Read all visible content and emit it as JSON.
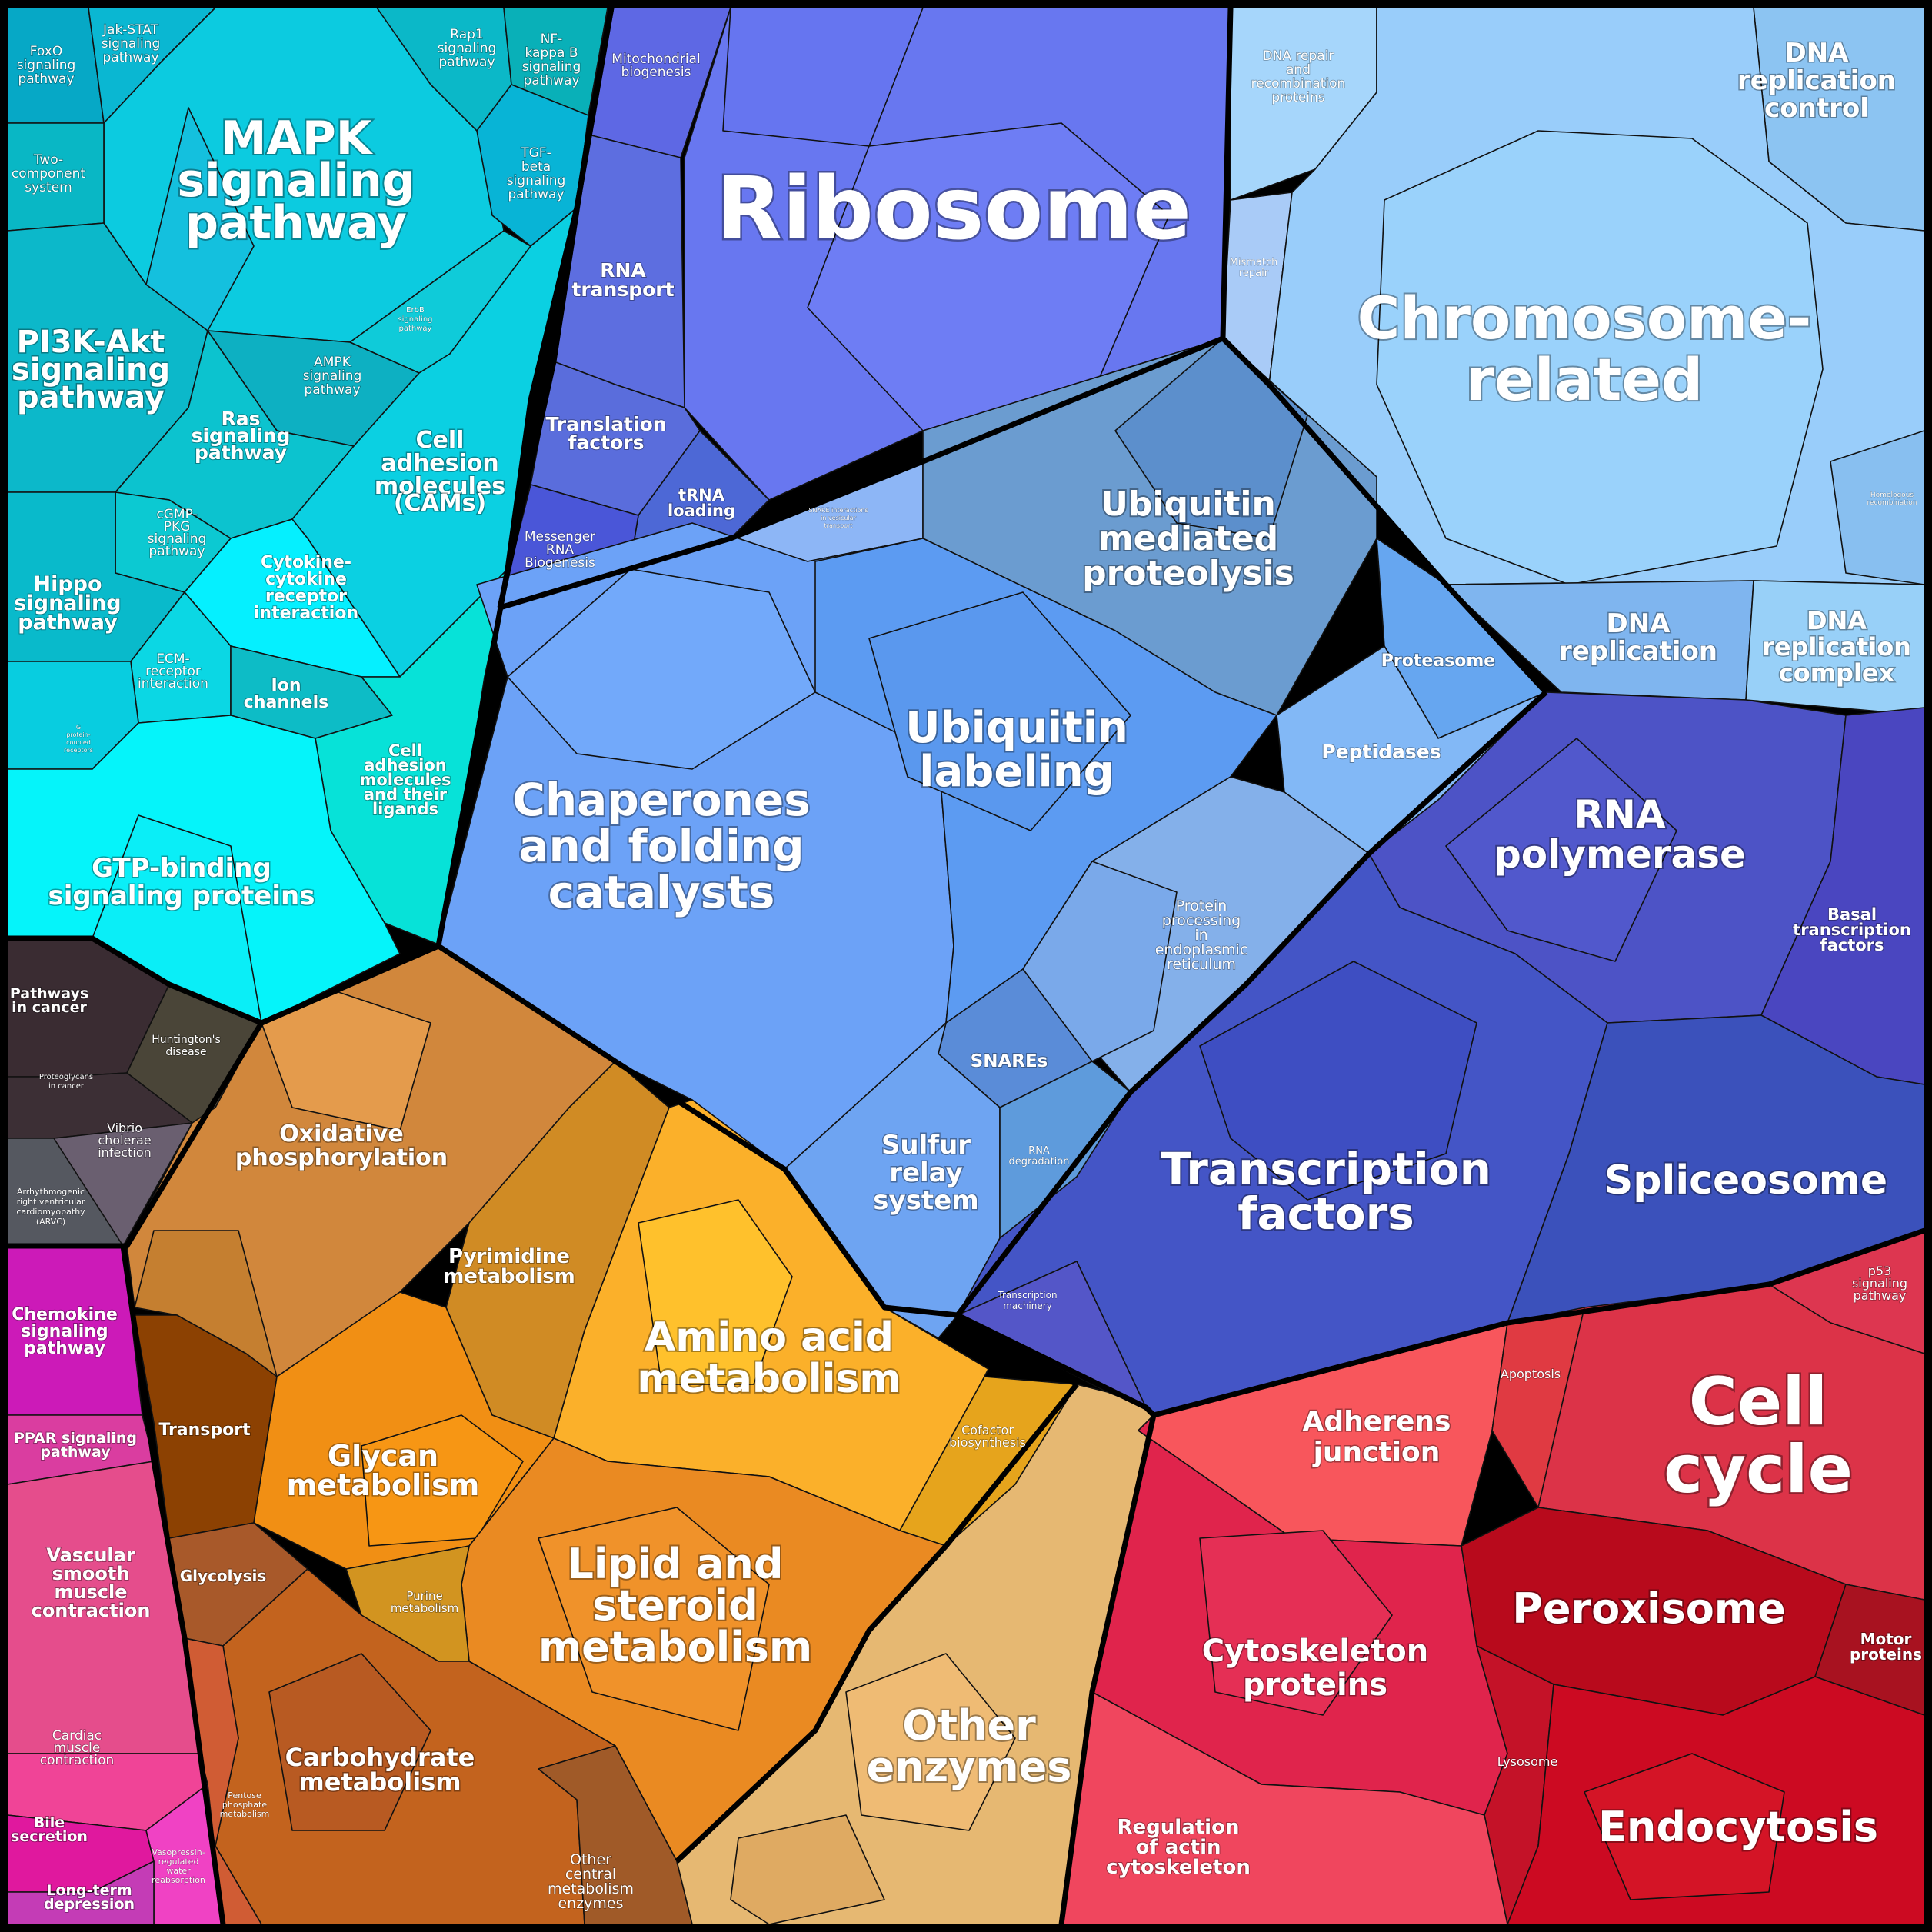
{
  "diagram": {
    "type": "voronoi-treemap",
    "regions": {
      "signaling": {
        "color": "#07c4de"
      },
      "ribosome": {
        "color": "#6674f2"
      },
      "chromosome": {
        "color": "#96ccf9"
      },
      "proteostasis": {
        "color": "#6da2f2"
      },
      "transcription": {
        "color": "#4050c6"
      },
      "disease": {
        "color": "#3a3234"
      },
      "metabolism": {
        "color": "#e08a22"
      },
      "other_enzymes": {
        "color": "#e6b46e"
      },
      "muscle": {
        "color": "#e23e96"
      },
      "cell_cycle": {
        "color": "#dd2e4b"
      }
    },
    "labels": {
      "foxo": "FoxO signaling pathway",
      "jakstat": "Jak-STAT signaling pathway",
      "mapk": "MAPK signaling pathway",
      "rap1": "Rap1 signaling pathway",
      "nfkb": "NF-kappa B signaling pathway",
      "tgfb": "TGF-beta signaling pathway",
      "twocomp": "Two-component system",
      "erbb": "ErbB signaling pathway",
      "pi3k": "PI3K-Akt signaling pathway",
      "ampk": "AMPK signaling pathway",
      "ras": "Ras signaling pathway",
      "cam": "Cell adhesion molecules (CAMs)",
      "cgmp": "cGMP-PKG signaling pathway",
      "hippo": "Hippo signaling pathway",
      "cytokine": "Cytokine-cytokine receptor interaction",
      "ecm": "ECM-receptor interaction",
      "ion": "Ion channels",
      "gpcr": "G protein-coupled receptors",
      "cam_lig": "Cell adhesion molecules and their ligands",
      "gtp": "GTP-binding signaling proteins",
      "mito": "Mitochondrial biogenesis",
      "ribosome": "Ribosome",
      "rnatransport": "RNA transport",
      "translation": "Translation factors",
      "trna": "tRNA loading",
      "mrna": "Messenger RNA Biogenesis",
      "snare_vt": "SNARE interactions in vesicular transport",
      "dnarepair": "DNA repair and recombination proteins",
      "dnarepctl": "DNA replication control",
      "mismatch": "Mismatch repair",
      "chromosome": "Chromosome-related",
      "homologous": "Homologous recombination",
      "dnarep": "DNA replication",
      "dnarepcx": "DNA replication complex",
      "ubmed": "Ubiquitin mediated proteolysis",
      "proteasome": "Proteasome",
      "ublab": "Ubiquitin labeling",
      "peptidases": "Peptidases",
      "chaperones": "Chaperones and folding catalysts",
      "er": "Protein processing in endoplasmic reticulum",
      "snares": "SNAREs",
      "sulfur": "Sulfur relay system",
      "rnadeg": "RNA degradation",
      "rnapol": "RNA polymerase",
      "basal": "Basal transcription factors",
      "tf": "Transcription factors",
      "splice": "Spliceosome",
      "txmach": "Transcription machinery",
      "cancer": "Pathways in cancer",
      "hunt": "Huntington's disease",
      "proteoglycans": "Proteoglycans in cancer",
      "vibrio": "Vibrio cholerae infection",
      "arvc": "Arrhythmogenic right ventricular cardiomyopathy (ARVC)",
      "oxphos": "Oxidative phosphorylation",
      "pyrimidine": "Pyrimidine metabolism",
      "amino": "Amino acid metabolism",
      "cofactor": "Cofactor biosynthesis",
      "transport": "Transport",
      "glycan": "Glycan metabolism",
      "lipid": "Lipid and steroid metabolism",
      "glycolysis": "Glycolysis",
      "purine": "Purine metabolism",
      "carbo": "Carbohydrate metabolism",
      "pentose": "Pentose phosphate metabolism",
      "othercentral": "Other central metabolism enzymes",
      "otherenz": "Other enzymes",
      "chemokine": "Chemokine signaling pathway",
      "ppar": "PPAR signaling pathway",
      "vsmc": "Vascular smooth muscle contraction",
      "cardiac": "Cardiac muscle contraction",
      "bile": "Bile secretion",
      "vasopressin": "Vasopressin-regulated water reabsorption",
      "ltd": "Long-term depression",
      "p53": "p53 signaling pathway",
      "adherens": "Adherens junction",
      "apoptosis": "Apoptosis",
      "cellcycle": "Cell cycle",
      "peroxisome": "Peroxisome",
      "motor": "Motor proteins",
      "cytoskeleton": "Cytoskeleton proteins",
      "lysosome": "Lysosome",
      "actin": "Regulation of actin cytoskeleton",
      "endocytosis": "Endocytosis"
    }
  }
}
